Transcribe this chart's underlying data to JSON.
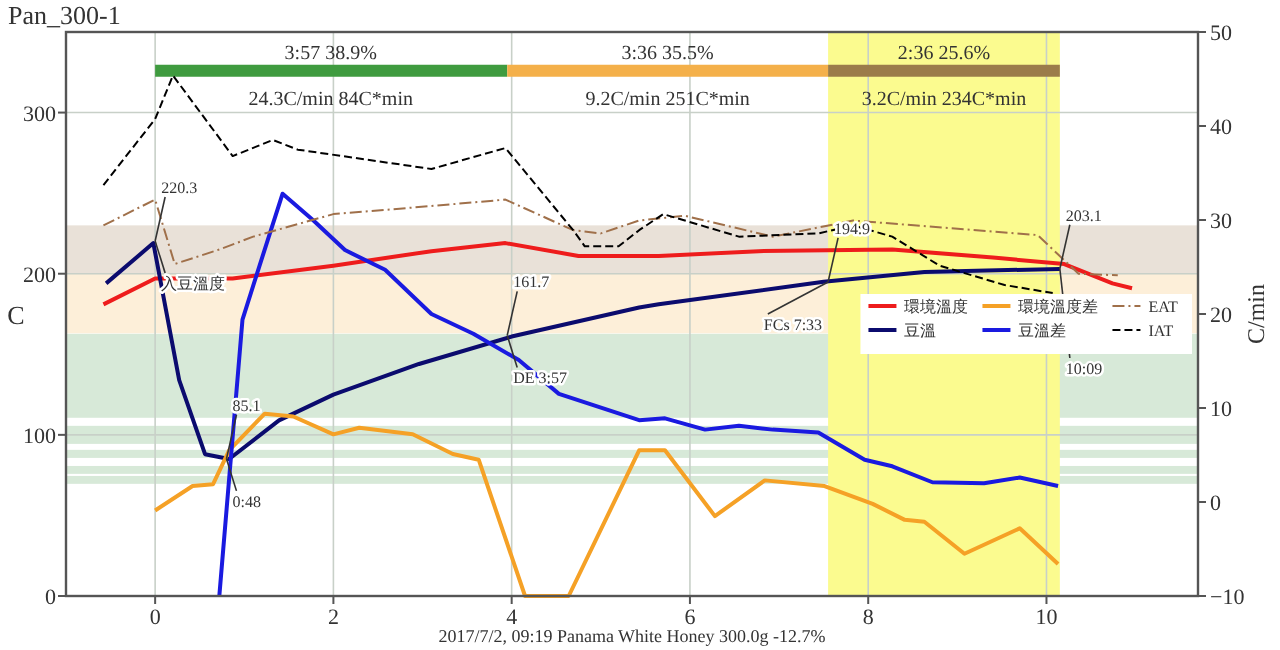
{
  "chart_data": {
    "type": "line",
    "title": "Pan_300-1",
    "xlim": [
      -1,
      11.7
    ],
    "xticks": [
      0,
      2,
      4,
      6,
      8,
      10
    ],
    "ylim": [
      0,
      350
    ],
    "yticks": [
      0,
      100,
      200,
      300
    ],
    "y2lim": [
      -10,
      50
    ],
    "y2ticks": [
      {
        "value": -10,
        "label": "−10"
      },
      0,
      10,
      20,
      30,
      40,
      50
    ],
    "ylabel": "C",
    "y2label": "C/min",
    "grid": true,
    "legend": "right",
    "bands": [
      {
        "axis": "y",
        "from": 200,
        "to": 230,
        "color": "#e9e1d8"
      },
      {
        "axis": "y",
        "from": 163,
        "to": 200,
        "color": "#fdefd9"
      },
      {
        "axis": "y",
        "from": 110.6,
        "to": 162.7,
        "color": "#d7e9d8"
      },
      {
        "axis": "y",
        "from": 94.4,
        "to": 105.6,
        "color": "#d7e9d8"
      },
      {
        "axis": "y",
        "from": 85.7,
        "to": 90.7,
        "color": "#d7e9d8"
      },
      {
        "axis": "y",
        "from": 75.8,
        "to": 80.7,
        "color": "#d7e9d8"
      },
      {
        "axis": "y",
        "from": 69.6,
        "to": 74.5,
        "color": "#d7e9d8"
      },
      {
        "axis": "x",
        "from": 7.55,
        "to": 10.15,
        "color": "#fbfb8f"
      }
    ],
    "series": [
      {
        "color": "#3f9b3f",
        "x": [
          0,
          3.95
        ],
        "values": [
          326,
          326
        ]
      },
      {
        "color": "#f4b04a",
        "x": [
          3.95,
          7.55
        ],
        "values": [
          326,
          326
        ]
      },
      {
        "color": "#9b7c4a",
        "x": [
          7.55,
          10.15
        ],
        "values": [
          326,
          326
        ]
      },
      {
        "name": "環境溫度",
        "color": "#ee1c1c",
        "line_style": "solid",
        "x": [
          -0.58,
          0,
          0.87,
          2.0,
          3.1,
          3.93,
          4.75,
          5.65,
          6.77,
          8.27,
          9.4,
          10.2,
          10.74,
          10.96
        ],
        "values": [
          181,
          197,
          197,
          205,
          214,
          219,
          211,
          211,
          214,
          215,
          210,
          206,
          194,
          191
        ]
      },
      {
        "name": "豆溫",
        "color": "#0b0b6e",
        "line_style": "solid",
        "x": [
          -0.55,
          -0.02,
          0.27,
          0.56,
          0.83,
          1.39,
          2.0,
          2.96,
          4.0,
          5.43,
          5.65,
          7.5,
          8.63,
          10.15
        ],
        "values": [
          194,
          219,
          134,
          88,
          85,
          109,
          125,
          144,
          161,
          179,
          181,
          195,
          201,
          203
        ]
      },
      {
        "name": "環境溫度差",
        "color": "#f5a126",
        "line_style": "solid",
        "axis": "y2",
        "x": [
          0,
          0.42,
          0.65,
          0.83,
          1.23,
          1.55,
          2.0,
          2.29,
          2.89,
          3.34,
          3.63,
          4.15,
          4.64,
          5.43,
          5.72,
          6.28,
          6.84,
          7.51,
          8.05,
          8.41,
          8.63,
          9.08,
          9.7,
          10.13
        ],
        "values": [
          -0.9,
          1.7,
          1.9,
          5.5,
          9.4,
          9.1,
          7.2,
          7.9,
          7.2,
          5.1,
          4.5,
          -10,
          -10,
          5.5,
          5.5,
          -1.5,
          2.3,
          1.7,
          -0.2,
          -1.9,
          -2.1,
          -5.5,
          -2.8,
          -6.6
        ]
      },
      {
        "name": "豆溫差",
        "color": "#1a1ae0",
        "line_style": "solid",
        "axis": "y2",
        "x": [
          0.72,
          0.98,
          1.17,
          1.43,
          1.77,
          2.13,
          2.58,
          3.1,
          3.57,
          4.08,
          4.53,
          5.43,
          5.72,
          6.17,
          6.55,
          6.93,
          7.44,
          7.96,
          8.27,
          8.72,
          9.3,
          9.7,
          10.13
        ],
        "values": [
          -10,
          19.4,
          25.1,
          32.8,
          30,
          26.8,
          24.7,
          20,
          17.9,
          15.1,
          11.5,
          8.7,
          8.9,
          7.7,
          8.1,
          7.7,
          7.4,
          4.5,
          3.8,
          2.1,
          2,
          2.6,
          1.7
        ]
      },
      {
        "name": "EAT",
        "color": "#a0704a",
        "line_style": "dashdot",
        "x": [
          -0.58,
          0,
          0.22,
          0.72,
          1.1,
          2.0,
          3.1,
          3.93,
          4.69,
          5.0,
          5.43,
          5.94,
          6.93,
          7.83,
          9.9,
          10.36,
          10.8
        ],
        "values": [
          230,
          246,
          206,
          215,
          223,
          237,
          242,
          246,
          227,
          225,
          233,
          236,
          223,
          233,
          224,
          200,
          199
        ]
      },
      {
        "name": "IAT",
        "color": "#000000",
        "line_style": "dashed",
        "x": [
          -0.58,
          0,
          0.2,
          0.87,
          1.32,
          1.6,
          3.1,
          3.93,
          4.69,
          4.82,
          5.2,
          5.43,
          5.7,
          6.55,
          7.44,
          7.83,
          8.27,
          8.8,
          9.53,
          10.07
        ],
        "values": [
          255,
          296,
          323,
          273,
          283,
          277,
          265,
          278,
          227,
          217,
          217,
          227,
          237,
          223,
          225,
          230,
          223,
          205,
          193,
          188
        ]
      }
    ],
    "annotations": [
      {
        "text": "3:57  38.9%",
        "x": 1.97,
        "y": 326
      },
      {
        "text": "24.3C/min  84C*min",
        "x": 1.97,
        "y": 326
      },
      {
        "text": "3:36  35.5%",
        "x": 5.75,
        "y": 326
      },
      {
        "text": "9.2C/min  251C*min",
        "x": 5.75,
        "y": 326
      },
      {
        "text": "2:36  25.6%",
        "x": 8.85,
        "y": 326
      },
      {
        "text": "3.2C/min  234C*min",
        "x": 8.85,
        "y": 326
      },
      {
        "text": "220.3",
        "x": 0,
        "y": 220.3
      },
      {
        "text": "入豆溫度",
        "x": 0,
        "y": 220.3
      },
      {
        "text": "85.1",
        "x": 0.8,
        "y": 85.1
      },
      {
        "text": "0:48",
        "x": 0.8,
        "y": 85.1
      },
      {
        "text": "161.7",
        "x": 3.95,
        "y": 161.7
      },
      {
        "text": "DE 3:57",
        "x": 3.95,
        "y": 161.7
      },
      {
        "text": "194.9",
        "x": 7.55,
        "y": 194.9
      },
      {
        "text": "FCs 7:33",
        "x": 7.55,
        "y": 194.9
      },
      {
        "text": "203.1",
        "x": 10.15,
        "y": 203.1
      },
      {
        "text": "10:09",
        "x": 10.15,
        "y": 203.1
      },
      "2017/7/2, 09:19  Panama White Honey  300.0g  -12.7%"
    ]
  }
}
